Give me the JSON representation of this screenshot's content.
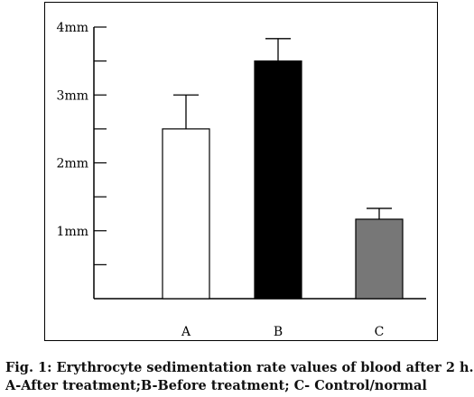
{
  "chart_data": {
    "type": "bar",
    "categories": [
      "A",
      "B",
      "C"
    ],
    "values": [
      2.5,
      3.5,
      1.17
    ],
    "error_upper": [
      3.0,
      3.83,
      1.33
    ],
    "bar_colors": [
      "#ffffff",
      "#000000",
      "#777777"
    ],
    "ylim": [
      0,
      4
    ],
    "y_tick_labels": [
      "1mm",
      "2mm",
      "3mm",
      "4mm"
    ],
    "y_tick_values": [
      1,
      2,
      3,
      4
    ],
    "minor_tick_step": 0.5,
    "grid": false
  },
  "caption": {
    "line1": "Fig. 1: Erythrocyte sedimentation rate values of blood after 2 h.",
    "line2": "A-After treatment;B-Before treatment; C- Control/normal"
  }
}
